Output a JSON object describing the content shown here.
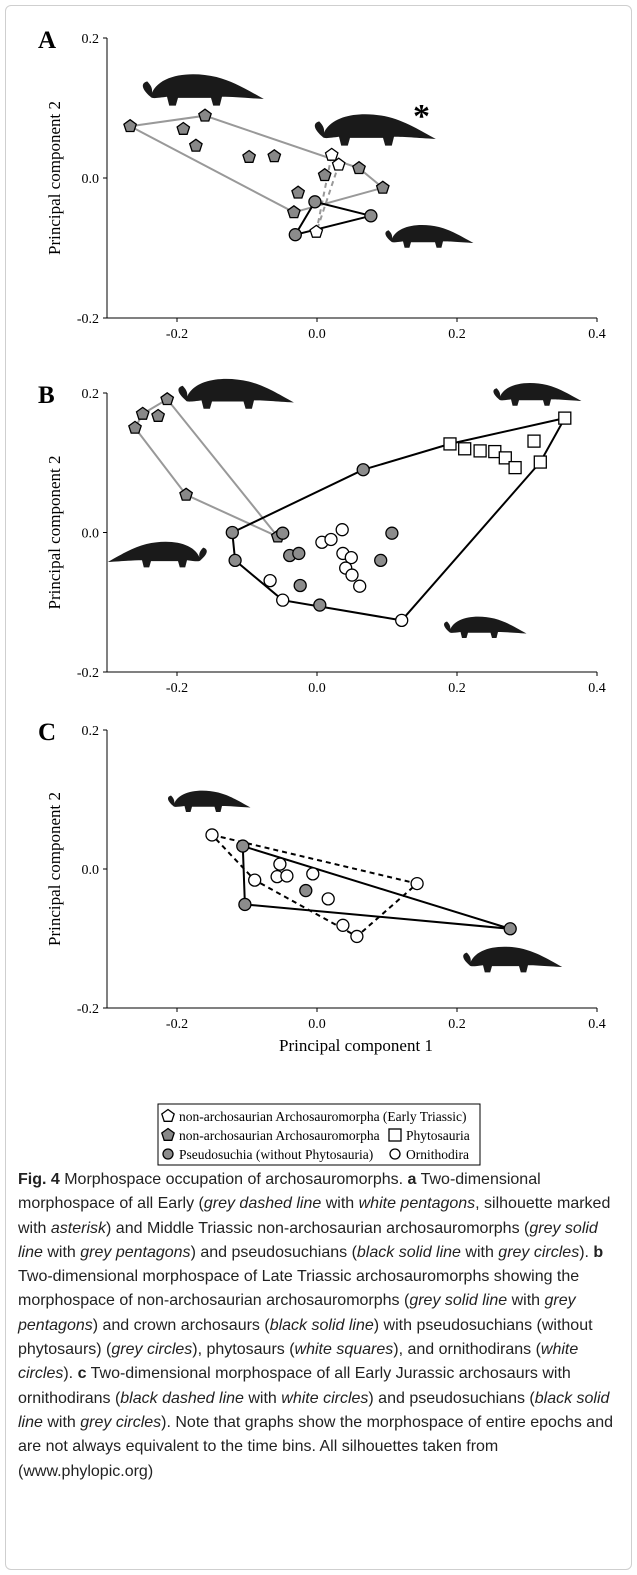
{
  "chart_data": [
    {
      "type": "scatter",
      "panel": "A",
      "ylabel": "Principal component 2",
      "xlim": [
        -0.3,
        0.4
      ],
      "ylim": [
        -0.2,
        0.2
      ],
      "xticks": [
        -0.2,
        {
          "value": 0,
          "label": "0.0"
        },
        0.2,
        0.4
      ],
      "yticks": [
        -0.2,
        {
          "value": 0,
          "label": "0.0"
        },
        0.2
      ],
      "annotation": "*",
      "series": [
        {
          "marker": "pentagon",
          "color": "#ffffff",
          "x": [
            0.021,
            0.031,
            -0.001
          ],
          "values": [
            0.033,
            0.019,
            -0.077
          ]
        },
        {
          "marker": "pentagon",
          "color": "#888888",
          "x": [
            -0.267,
            -0.191,
            -0.16,
            -0.173,
            -0.097,
            -0.061,
            -0.027,
            -0.033,
            0.011,
            0.06,
            0.094
          ],
          "values": [
            0.074,
            0.07,
            0.089,
            0.046,
            0.03,
            0.031,
            -0.021,
            -0.049,
            0.004,
            0.014,
            -0.014
          ]
        },
        {
          "marker": "circle",
          "color": "#8c8c8c",
          "x": [
            -0.031,
            -0.003,
            0.077
          ],
          "values": [
            -0.081,
            -0.034,
            -0.054
          ]
        }
      ],
      "hulls": [
        {
          "series": [
            0
          ],
          "color": "#999999",
          "dashed": true
        },
        {
          "series": [
            1
          ],
          "color": "#999999",
          "dashed": false
        },
        {
          "series": [
            2
          ],
          "color": "#000000",
          "dashed": false
        }
      ]
    },
    {
      "type": "scatter",
      "panel": "B",
      "ylabel": "Principal component 2",
      "xlim": [
        -0.3,
        0.4
      ],
      "ylim": [
        -0.2,
        0.2
      ],
      "xticks": [
        -0.2,
        {
          "value": 0,
          "label": "0.0"
        },
        0.2,
        0.4
      ],
      "yticks": [
        -0.2,
        {
          "value": 0,
          "label": "0.0"
        },
        0.2
      ],
      "series": [
        {
          "marker": "pentagon",
          "color": "#888888",
          "x": [
            -0.26,
            -0.249,
            -0.227,
            -0.214,
            -0.187,
            -0.056
          ],
          "values": [
            0.15,
            0.17,
            0.167,
            0.191,
            0.054,
            -0.006
          ]
        },
        {
          "marker": "circle",
          "color": "#8c8c8c",
          "x": [
            -0.121,
            -0.049,
            -0.117,
            -0.039,
            -0.026,
            -0.024,
            0.004,
            0.091,
            0.107,
            0.066
          ],
          "values": [
            0.0,
            -0.001,
            -0.04,
            -0.033,
            -0.03,
            -0.076,
            -0.104,
            -0.04,
            -0.001,
            0.09
          ]
        },
        {
          "marker": "square",
          "color": "#ffffff",
          "x": [
            0.354,
            0.19,
            0.211,
            0.233,
            0.254,
            0.269,
            0.283,
            0.31,
            0.319
          ],
          "values": [
            0.164,
            0.127,
            0.12,
            0.117,
            0.116,
            0.107,
            0.093,
            0.131,
            0.101
          ]
        },
        {
          "marker": "circle",
          "color": "#ffffff",
          "x": [
            -0.067,
            -0.049,
            0.121,
            0.007,
            0.02,
            0.036,
            0.037,
            0.049,
            0.041,
            0.05,
            0.061
          ],
          "values": [
            -0.069,
            -0.097,
            -0.126,
            -0.014,
            -0.01,
            0.004,
            -0.03,
            -0.036,
            -0.051,
            -0.061,
            -0.077
          ]
        }
      ],
      "hulls": [
        {
          "series": [
            0
          ],
          "color": "#999999",
          "dashed": false
        },
        {
          "series": [
            1,
            2,
            3
          ],
          "color": "#000000",
          "dashed": false
        }
      ]
    },
    {
      "type": "scatter",
      "panel": "C",
      "ylabel": "Principal component 2",
      "xlabel": "Principal component 1",
      "xlim": [
        -0.3,
        0.4
      ],
      "ylim": [
        -0.2,
        0.2
      ],
      "xticks": [
        -0.2,
        {
          "value": 0,
          "label": "0.0"
        },
        0.2,
        0.4
      ],
      "yticks": [
        -0.2,
        {
          "value": 0,
          "label": "0.0"
        },
        0.2
      ],
      "series": [
        {
          "marker": "circle",
          "color": "#ffffff",
          "x": [
            -0.15,
            -0.089,
            -0.053,
            -0.057,
            -0.043,
            -0.006,
            0.016,
            0.037,
            0.057,
            0.143
          ],
          "values": [
            0.049,
            -0.016,
            0.007,
            -0.011,
            -0.01,
            -0.007,
            -0.043,
            -0.081,
            -0.097,
            -0.021
          ]
        },
        {
          "marker": "circle",
          "color": "#8c8c8c",
          "x": [
            -0.106,
            -0.103,
            -0.016,
            0.276
          ],
          "values": [
            0.033,
            -0.051,
            -0.031,
            -0.086
          ]
        }
      ],
      "hulls": [
        {
          "series": [
            0
          ],
          "color": "#000000",
          "dashed": true
        },
        {
          "series": [
            1
          ],
          "color": "#000000",
          "dashed": false
        }
      ]
    }
  ],
  "legend": {
    "entries": [
      {
        "label": "non-archosaurian Archosauromorpha (Early Triassic)",
        "marker": "pentagon",
        "color": "#ffffff"
      },
      {
        "label": "non-archosaurian Archosauromorpha",
        "marker": "pentagon",
        "color": "#888888"
      },
      {
        "label": "Phytosauria",
        "marker": "square",
        "color": "#ffffff"
      },
      {
        "label": "Pseudosuchia (without Phytosauria)",
        "marker": "circle",
        "color": "#8c8c8c"
      },
      {
        "label": "Ornithodira",
        "marker": "circle",
        "color": "#ffffff"
      }
    ]
  },
  "caption": {
    "runs": [
      {
        "text": "Fig. 4",
        "style": "bold"
      },
      {
        "text": " Morphospace occupation of archosauromorphs. "
      },
      {
        "text": "a",
        "style": "bold"
      },
      {
        "text": " Two-dimensional morphospace of all Early ("
      },
      {
        "text": "grey dashed line",
        "style": "italic"
      },
      {
        "text": " with "
      },
      {
        "text": "white pentagons",
        "style": "italic"
      },
      {
        "text": ", silhouette marked with "
      },
      {
        "text": "asterisk",
        "style": "italic"
      },
      {
        "text": ") and Middle Triassic non-archosaurian archosauromorphs ("
      },
      {
        "text": "grey solid line",
        "style": "italic"
      },
      {
        "text": " with "
      },
      {
        "text": "grey pentagons",
        "style": "italic"
      },
      {
        "text": ") and pseudosuchians ("
      },
      {
        "text": "black solid line",
        "style": "italic"
      },
      {
        "text": " with "
      },
      {
        "text": "grey circles",
        "style": "italic"
      },
      {
        "text": "). "
      },
      {
        "text": "b",
        "style": "bold"
      },
      {
        "text": " Two-dimensional morphospace of Late Triassic archosauromorphs showing the morphospace of non-archosaurian archosauromorphs ("
      },
      {
        "text": "grey solid line",
        "style": "italic"
      },
      {
        "text": " with "
      },
      {
        "text": "grey pentagons",
        "style": "italic"
      },
      {
        "text": ") and crown archosaurs ("
      },
      {
        "text": "black solid line",
        "style": "italic"
      },
      {
        "text": ") with pseudosuchians (without phytosaurs) ("
      },
      {
        "text": "grey circles",
        "style": "italic"
      },
      {
        "text": "), phytosaurs ("
      },
      {
        "text": "white squares",
        "style": "italic"
      },
      {
        "text": "), and ornithodirans ("
      },
      {
        "text": "white circles",
        "style": "italic"
      },
      {
        "text": "). "
      },
      {
        "text": "c",
        "style": "bold"
      },
      {
        "text": " Two-dimensional morphospace of all Early Jurassic archosaurs with ornithodirans ("
      },
      {
        "text": "black dashed line",
        "style": "italic"
      },
      {
        "text": " with "
      },
      {
        "text": "white circles",
        "style": "italic"
      },
      {
        "text": ") and pseudosuchians ("
      },
      {
        "text": "black solid line",
        "style": "italic"
      },
      {
        "text": " with "
      },
      {
        "text": "grey circles",
        "style": "italic"
      },
      {
        "text": "). Note that graphs show the morphospace of entire epochs and are not always equivalent to the time bins. All silhouettes taken from (www.phylopic.org)"
      }
    ]
  }
}
